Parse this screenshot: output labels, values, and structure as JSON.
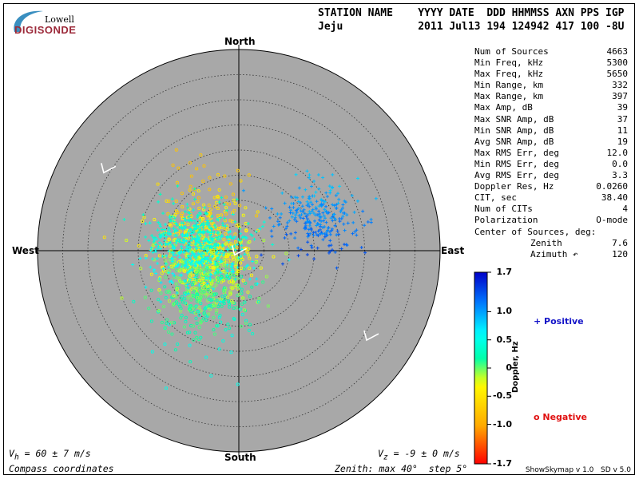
{
  "logo": {
    "top": "Lowell",
    "bottom": "DIGISONDE"
  },
  "header": {
    "line1": "STATION NAME    YYYY DATE  DDD HHMMSS AXN PPS IGP",
    "line2": "Jeju            2011 Jul13 194 124942 417 100 -8U"
  },
  "stats": [
    {
      "key": "Num of Sources",
      "value": "4663"
    },
    {
      "key": "Min Freq, kHz",
      "value": "5300"
    },
    {
      "key": "Max Freq, kHz",
      "value": "5650"
    },
    {
      "key": "Min Range, km",
      "value": "332"
    },
    {
      "key": "Max Range, km",
      "value": "397"
    },
    {
      "key": "Max Amp, dB",
      "value": "39"
    },
    {
      "key": "Max SNR Amp, dB",
      "value": "37"
    },
    {
      "key": "Min SNR Amp, dB",
      "value": "11"
    },
    {
      "key": "Avg SNR Amp, dB",
      "value": "19"
    },
    {
      "key": "Max RMS Err, deg",
      "value": "12.0"
    },
    {
      "key": "Min RMS Err, deg",
      "value": "0.0"
    },
    {
      "key": "Avg RMS Err, deg",
      "value": "3.3"
    },
    {
      "key": "Doppler Res, Hz",
      "value": "0.0260"
    },
    {
      "key": "CIT, sec",
      "value": "38.40"
    },
    {
      "key": "Num of CITs",
      "value": "4"
    },
    {
      "key": "Polarization",
      "value": "O-mode"
    },
    {
      "key": "Center of Sources, deg:",
      "value": ""
    },
    {
      "key": "Zenith",
      "value": "7.6",
      "sub": true
    },
    {
      "key": "Azimuth ↶",
      "value": "120",
      "sub": true
    }
  ],
  "directions": {
    "north": "North",
    "south": "South",
    "east": "East",
    "west": "West"
  },
  "footer": {
    "vh": "V",
    "vh_sub": "h",
    "vh_rest": " = 60 ± 7 m/s",
    "vz": "V",
    "vz_sub": "z",
    "vz_rest": " = -9 ± 0 m/s",
    "coords": "Compass coordinates",
    "zenith": "Zenith: max 40°  step 5°",
    "version": "ShowSkymap v 1.0   SD v 5.0"
  },
  "colorbar": {
    "label": "Doppler, Hz",
    "ticks": [
      "1.7",
      "1.0",
      "0.5",
      "0",
      "-0.5",
      "-1.0",
      "-1.7"
    ],
    "tick_values": [
      1.7,
      1.0,
      0.5,
      0,
      -0.5,
      -1.0,
      -1.7
    ]
  },
  "legend": {
    "positive": "+ Positive",
    "negative": "o Negative",
    "positive_color": "#1414c8",
    "negative_color": "#e01010"
  },
  "colors": {
    "disk": "#a8a8a8"
  },
  "chart_data": {
    "type": "scatter",
    "zenith_max_deg": 40,
    "zenith_step_deg": 5,
    "coordinates": "compass",
    "clusters": [
      {
        "kind": "positive",
        "center_az_deg": 67,
        "center_zenith_deg": 16.5,
        "spread_deg": 4.2,
        "count": 260,
        "doppler_range": [
          0.7,
          1.4
        ]
      },
      {
        "kind": "negative",
        "center_az_deg": 245,
        "center_zenith_deg": 7.5,
        "spread_deg": 5.5,
        "count": 900,
        "doppler_range": [
          -0.8,
          0.5
        ]
      },
      {
        "kind": "positive",
        "center_az_deg": 280,
        "center_zenith_deg": 8.5,
        "spread_deg": 4.8,
        "count": 500,
        "doppler_range": [
          0.2,
          0.7
        ]
      }
    ],
    "velocity_arrows": [
      {
        "az_deg": 300,
        "zenith_deg": 31
      },
      {
        "az_deg": 225,
        "zenith_deg": 1.2
      },
      {
        "az_deg": 125,
        "zenith_deg": 31
      }
    ]
  }
}
